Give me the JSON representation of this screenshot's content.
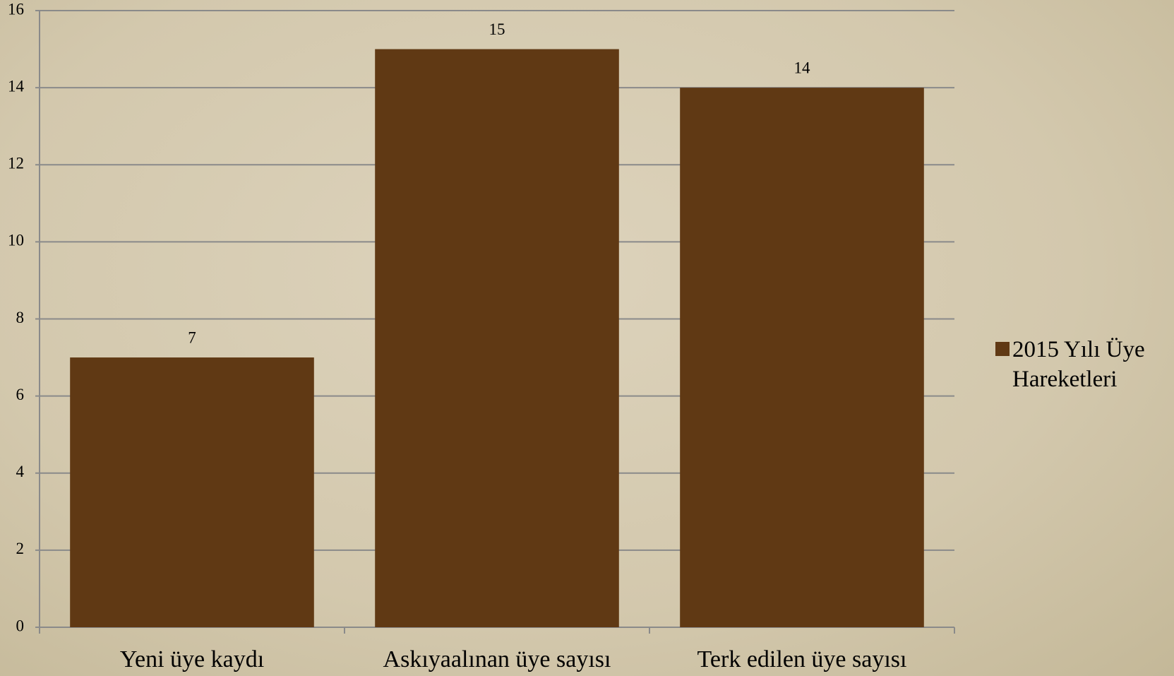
{
  "chart_data": {
    "type": "bar",
    "categories": [
      "Yeni üye kaydı",
      "Askıyaalınan üye sayısı",
      "Terk edilen üye sayısı"
    ],
    "series": [
      {
        "name": "2015 Yılı Üye Hareketleri",
        "color": "#603914",
        "values": [
          7,
          15,
          14
        ]
      }
    ],
    "ylim": [
      0,
      16
    ],
    "yticks": [
      0,
      2,
      4,
      6,
      8,
      10,
      12,
      14,
      16
    ],
    "grid": true,
    "legend": "right",
    "data_labels": true
  }
}
